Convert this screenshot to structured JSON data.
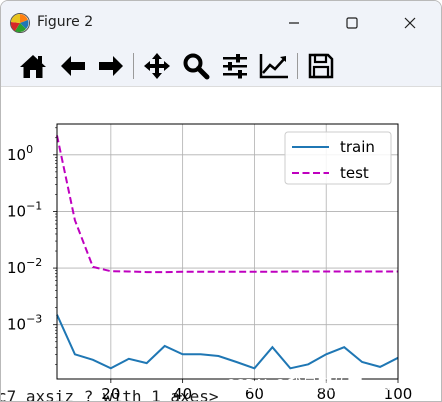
{
  "window": {
    "title": "Figure 2",
    "minimize_icon": "minimize-icon",
    "maximize_icon": "maximize-icon",
    "close_icon": "close-icon"
  },
  "toolbar": {
    "items": [
      {
        "name": "home-button",
        "icon": "home-icon"
      },
      {
        "name": "back-button",
        "icon": "arrow-left-icon"
      },
      {
        "name": "forward-button",
        "icon": "arrow-right-icon"
      },
      {
        "name": "pan-button",
        "icon": "move-icon"
      },
      {
        "name": "zoom-button",
        "icon": "magnifier-icon"
      },
      {
        "name": "subplots-button",
        "icon": "sliders-icon"
      },
      {
        "name": "edit-axis-button",
        "icon": "line-chart-icon"
      },
      {
        "name": "save-button",
        "icon": "floppy-disk-icon"
      }
    ]
  },
  "chart_data": {
    "type": "line",
    "title": "",
    "xlabel": "",
    "ylabel": "",
    "yscale": "log",
    "xlim": [
      5,
      100
    ],
    "ylim": [
      0.00011,
      3.5
    ],
    "grid": true,
    "legend_position": "top-right",
    "x_ticks": [
      {
        "value": 20,
        "label": "20"
      },
      {
        "value": 40,
        "label": "40"
      },
      {
        "value": 60,
        "label": "60"
      },
      {
        "value": 80,
        "label": "80"
      },
      {
        "value": 100,
        "label": "100"
      }
    ],
    "y_ticks": [
      {
        "value": 1,
        "label": "10",
        "exp": "0"
      },
      {
        "value": 0.1,
        "label": "10",
        "exp": "−1"
      },
      {
        "value": 0.01,
        "label": "10",
        "exp": "−2"
      },
      {
        "value": 0.001,
        "label": "10",
        "exp": "−3"
      }
    ],
    "series": [
      {
        "name": "train",
        "color": "#1f77b4",
        "dash": "solid",
        "x": [
          5,
          10,
          15,
          20,
          25,
          30,
          35,
          40,
          45,
          50,
          55,
          60,
          65,
          70,
          75,
          80,
          85,
          90,
          95,
          100
        ],
        "y": [
          0.0015,
          0.0003,
          0.00024,
          0.00017,
          0.00025,
          0.00021,
          0.00042,
          0.0003,
          0.0003,
          0.00028,
          0.00022,
          0.00017,
          0.0004,
          0.00017,
          0.0002,
          0.0003,
          0.0004,
          0.00022,
          0.00018,
          0.00026
        ]
      },
      {
        "name": "test",
        "color": "#bf00bf",
        "dash": "dashed",
        "x": [
          5,
          10,
          15,
          20,
          25,
          30,
          35,
          40,
          45,
          50,
          55,
          60,
          65,
          70,
          75,
          80,
          85,
          90,
          95,
          100
        ],
        "y": [
          2.2,
          0.07,
          0.0105,
          0.0088,
          0.0087,
          0.0085,
          0.0085,
          0.0086,
          0.0086,
          0.0086,
          0.0086,
          0.0086,
          0.0086,
          0.0087,
          0.0087,
          0.0087,
          0.0087,
          0.0087,
          0.0087,
          0.0087
        ]
      }
    ]
  },
  "watermark": "CSDN @我是真的菜gou",
  "background_text": "c7 axsiz ? with 1 axes>"
}
